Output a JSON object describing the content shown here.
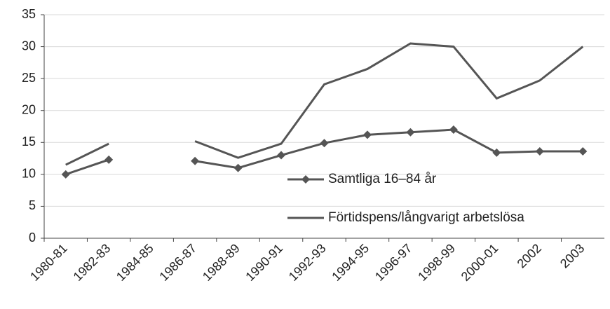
{
  "chart_data": {
    "type": "line",
    "categories": [
      "1980-81",
      "1982-83",
      "1984-85",
      "1986-87",
      "1988-89",
      "1990-91",
      "1992-93",
      "1994-95",
      "1996-97",
      "1998-99",
      "2000-01",
      "2002",
      "2003"
    ],
    "series": [
      {
        "name": "Samtliga 16–84 år",
        "color": "#555555",
        "marker": "diamond",
        "values": [
          10,
          12.3,
          null,
          12.1,
          11,
          13,
          14.9,
          16.2,
          16.6,
          17,
          13.4,
          13.6,
          13.6
        ]
      },
      {
        "name": "Förtidspens/långvarigt arbetslösa",
        "color": "#555555",
        "marker": "none",
        "values": [
          11.5,
          14.8,
          null,
          15.2,
          12.6,
          14.8,
          24.1,
          26.5,
          30.5,
          30,
          21.9,
          24.7,
          30
        ]
      }
    ],
    "ylim": [
      0,
      35
    ],
    "yticks": [
      0,
      5,
      10,
      15,
      20,
      25,
      30,
      35
    ],
    "grid": true
  }
}
